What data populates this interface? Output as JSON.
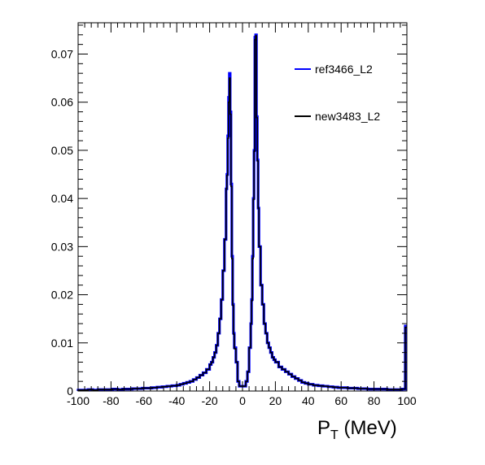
{
  "chart_data": {
    "type": "histogram-step",
    "xlim": [
      -100,
      100
    ],
    "ylim": [
      0,
      0.0765
    ],
    "xticks": [
      -100,
      -80,
      -60,
      -40,
      -20,
      0,
      20,
      40,
      60,
      80,
      100
    ],
    "yticks": [
      0,
      0.01,
      0.02,
      0.03,
      0.04,
      0.05,
      0.06,
      0.07
    ],
    "ytick_labels": [
      "0",
      "0.01",
      "0.02",
      "0.03",
      "0.04",
      "0.05",
      "0.06",
      "0.07"
    ],
    "xlabel_main": "P",
    "xlabel_sub": "T",
    "xlabel_units": " (MeV)",
    "legend": {
      "placement": "top-right"
    },
    "grid": false,
    "x": [
      -100,
      -97,
      -94,
      -91,
      -88,
      -85,
      -82,
      -79,
      -76,
      -73,
      -70,
      -67,
      -64,
      -61,
      -58,
      -55,
      -52,
      -49,
      -46,
      -43,
      -40,
      -38,
      -36,
      -34,
      -32,
      -30,
      -28,
      -26,
      -24,
      -22,
      -20,
      -19,
      -18,
      -17,
      -16,
      -15,
      -14,
      -13,
      -12,
      -11,
      -10,
      -9.5,
      -9,
      -8.5,
      -8,
      -7.5,
      -7,
      -6.5,
      -6,
      -5.5,
      -5,
      -4,
      -3,
      -2,
      -1,
      0,
      1,
      2,
      3,
      4,
      5,
      5.5,
      6,
      6.5,
      7,
      7.5,
      8,
      8.5,
      9,
      9.5,
      10,
      11,
      12,
      13,
      14,
      15,
      16,
      17,
      18,
      19,
      20,
      22,
      24,
      26,
      28,
      30,
      32,
      34,
      36,
      38,
      40,
      43,
      46,
      49,
      52,
      55,
      58,
      61,
      64,
      67,
      70,
      73,
      76,
      79,
      82,
      85,
      88,
      91,
      94,
      97,
      99,
      100
    ],
    "series": [
      {
        "name": "ref3466_L2",
        "color": "#0000ff",
        "values": [
          0.0002,
          0.0002,
          0.0003,
          0.0002,
          0.0003,
          0.0003,
          0.0003,
          0.0004,
          0.0003,
          0.0004,
          0.0004,
          0.0005,
          0.0005,
          0.0006,
          0.0006,
          0.0007,
          0.0008,
          0.0009,
          0.001,
          0.0011,
          0.0012,
          0.0014,
          0.0016,
          0.0018,
          0.002,
          0.0024,
          0.0028,
          0.0033,
          0.0038,
          0.0045,
          0.0055,
          0.006,
          0.007,
          0.008,
          0.0095,
          0.012,
          0.015,
          0.019,
          0.025,
          0.0315,
          0.042,
          0.045,
          0.053,
          0.061,
          0.066,
          0.058,
          0.043,
          0.028,
          0.018,
          0.012,
          0.009,
          0.006,
          0.002,
          0.001,
          0.001,
          0.001,
          0.001,
          0.002,
          0.004,
          0.009,
          0.014,
          0.019,
          0.028,
          0.04,
          0.05,
          0.0735,
          0.074,
          0.057,
          0.048,
          0.038,
          0.03,
          0.022,
          0.018,
          0.014,
          0.012,
          0.01,
          0.009,
          0.008,
          0.007,
          0.0065,
          0.006,
          0.005,
          0.0045,
          0.004,
          0.0035,
          0.003,
          0.0026,
          0.0022,
          0.0018,
          0.0016,
          0.0014,
          0.0012,
          0.0011,
          0.001,
          0.0009,
          0.0008,
          0.0007,
          0.0007,
          0.0006,
          0.0006,
          0.0005,
          0.0005,
          0.0004,
          0.0004,
          0.0004,
          0.0004,
          0.0003,
          0.0003,
          0.0003,
          0.0004,
          0.0135,
          0.0135
        ]
      },
      {
        "name": "new3483_L2",
        "color": "#000000",
        "values": [
          0.0002,
          0.0002,
          0.0003,
          0.0002,
          0.0003,
          0.0003,
          0.0003,
          0.0004,
          0.0003,
          0.0004,
          0.0004,
          0.0005,
          0.0005,
          0.0006,
          0.0006,
          0.0007,
          0.0008,
          0.0009,
          0.001,
          0.0011,
          0.0012,
          0.0014,
          0.0016,
          0.0018,
          0.002,
          0.0024,
          0.0028,
          0.0033,
          0.0038,
          0.0045,
          0.0055,
          0.006,
          0.007,
          0.008,
          0.0095,
          0.012,
          0.015,
          0.019,
          0.025,
          0.0315,
          0.042,
          0.0448,
          0.0525,
          0.06,
          0.065,
          0.0575,
          0.0425,
          0.0275,
          0.0178,
          0.0118,
          0.0088,
          0.006,
          0.002,
          0.001,
          0.001,
          0.001,
          0.001,
          0.002,
          0.004,
          0.009,
          0.014,
          0.0188,
          0.0275,
          0.0398,
          0.0498,
          0.073,
          0.0738,
          0.0568,
          0.0478,
          0.038,
          0.03,
          0.022,
          0.018,
          0.014,
          0.012,
          0.01,
          0.009,
          0.008,
          0.007,
          0.0065,
          0.006,
          0.005,
          0.0045,
          0.004,
          0.0035,
          0.003,
          0.0026,
          0.0022,
          0.0018,
          0.0016,
          0.0014,
          0.0012,
          0.0011,
          0.001,
          0.0009,
          0.0008,
          0.0007,
          0.0007,
          0.0006,
          0.0006,
          0.0005,
          0.0005,
          0.0004,
          0.0004,
          0.0004,
          0.0004,
          0.0003,
          0.0003,
          0.0003,
          0.0004,
          0.0132,
          0.0132
        ]
      }
    ]
  }
}
